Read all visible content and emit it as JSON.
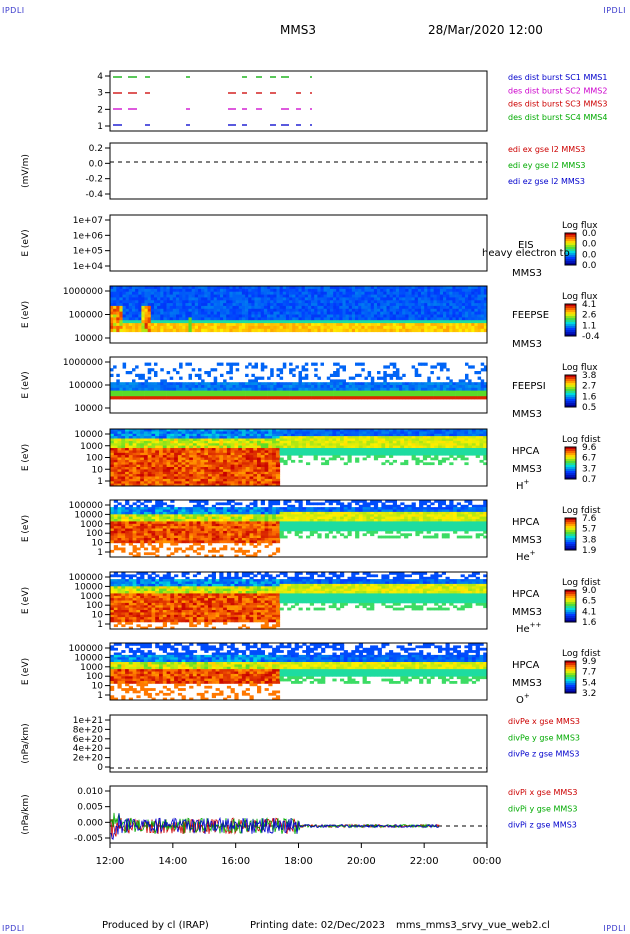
{
  "corner_label": "IPDLI",
  "header": {
    "title": "MMS3",
    "datetime": "28/Mar/2020 12:00"
  },
  "footer": {
    "produced": "Produced by cl (IRAP)",
    "printing": "Printing date: 02/Dec/2023",
    "file": "mms_mms3_srvy_vue_web2.cl"
  },
  "x_ticks": [
    "12:00",
    "14:00",
    "16:00",
    "18:00",
    "20:00",
    "22:00",
    "00:00"
  ],
  "chart_data": [
    {
      "type": "line",
      "title": "des dist burst",
      "yticks": [
        "4",
        "3",
        "2",
        "1"
      ],
      "legend": [
        {
          "text": "des dist burst SC1 MMS1",
          "color": "#0000cc"
        },
        {
          "text": "des dist burst SC2 MMS2",
          "color": "#cc00cc"
        },
        {
          "text": "des dist burst SC3 MMS3",
          "color": "#cc0000"
        },
        {
          "text": "des dist burst SC4 MMS4",
          "color": "#00aa00"
        }
      ]
    },
    {
      "type": "line",
      "ylabel": "(mV/m)",
      "yticks": [
        "0.2",
        "0.0",
        "-0.2",
        "-0.4"
      ],
      "legend": [
        {
          "text": "edi ex gse l2 MMS3",
          "color": "#cc0000"
        },
        {
          "text": "edi ey gse l2 MMS3",
          "color": "#00aa00"
        },
        {
          "text": "edi ez gse l2 MMS3",
          "color": "#0000cc"
        }
      ]
    },
    {
      "type": "heatmap",
      "ylabel": "E (eV)",
      "yticks": [
        "1e+07",
        "1e+06",
        "1e+05",
        "1e+04"
      ],
      "labels": [
        "EIS",
        "MMS3"
      ],
      "overlay": "heavy electron to",
      "colorbar": {
        "title": "Log flux",
        "ticks": [
          "0.0",
          "0.0",
          "0.0",
          "0.0"
        ]
      }
    },
    {
      "type": "heatmap",
      "ylabel": "E (eV)",
      "yticks": [
        "1000000",
        "100000",
        "10000"
      ],
      "labels": [
        "FEEPSE",
        "MMS3"
      ],
      "colorbar": {
        "title": "Log flux",
        "ticks": [
          "4.1",
          "2.6",
          "1.1",
          "-0.4"
        ]
      }
    },
    {
      "type": "heatmap",
      "ylabel": "E (eV)",
      "yticks": [
        "1000000",
        "100000",
        "10000"
      ],
      "labels": [
        "FEEPSI",
        "MMS3"
      ],
      "colorbar": {
        "title": "Log flux",
        "ticks": [
          "3.8",
          "2.7",
          "1.6",
          "0.5"
        ]
      }
    },
    {
      "type": "heatmap",
      "ylabel": "E (eV)",
      "yticks": [
        "10000",
        "1000",
        "100",
        "10",
        "1"
      ],
      "labels": [
        "HPCA",
        "MMS3",
        "H+"
      ],
      "colorbar": {
        "title": "Log fdist",
        "ticks": [
          "9.6",
          "6.7",
          "3.7",
          "0.7"
        ]
      }
    },
    {
      "type": "heatmap",
      "ylabel": "E (eV)",
      "yticks": [
        "100000",
        "10000",
        "1000",
        "100",
        "10",
        "1"
      ],
      "labels": [
        "HPCA",
        "MMS3",
        "He+"
      ],
      "colorbar": {
        "title": "Log fdist",
        "ticks": [
          "7.6",
          "5.7",
          "3.8",
          "1.9"
        ]
      }
    },
    {
      "type": "heatmap",
      "ylabel": "E (eV)",
      "yticks": [
        "100000",
        "10000",
        "1000",
        "100",
        "10",
        "1"
      ],
      "labels": [
        "HPCA",
        "MMS3",
        "He++"
      ],
      "colorbar": {
        "title": "Log fdist",
        "ticks": [
          "9.0",
          "6.5",
          "4.1",
          "1.6"
        ]
      }
    },
    {
      "type": "heatmap",
      "ylabel": "E (eV)",
      "yticks": [
        "100000",
        "10000",
        "1000",
        "100",
        "10",
        "1"
      ],
      "labels": [
        "HPCA",
        "MMS3",
        "O+"
      ],
      "colorbar": {
        "title": "Log fdist",
        "ticks": [
          "9.9",
          "7.7",
          "5.4",
          "3.2"
        ]
      }
    },
    {
      "type": "line",
      "ylabel": "(nPa/km)",
      "yticks": [
        "1e+21",
        "8e+20",
        "6e+20",
        "4e+20",
        "2e+20",
        "0"
      ],
      "legend": [
        {
          "text": "divPe x gse MMS3",
          "color": "#cc0000"
        },
        {
          "text": "divPe y gse MMS3",
          "color": "#00aa00"
        },
        {
          "text": "divPe z gse MMS3",
          "color": "#0000cc"
        }
      ]
    },
    {
      "type": "line",
      "ylabel": "(nPa/km)",
      "yticks": [
        "0.010",
        "0.005",
        "0.000",
        "-0.005"
      ],
      "legend": [
        {
          "text": "divPi x gse MMS3",
          "color": "#cc0000"
        },
        {
          "text": "divPi y gse MMS3",
          "color": "#00aa00"
        },
        {
          "text": "divPi z gse MMS3",
          "color": "#0000cc"
        }
      ]
    }
  ]
}
